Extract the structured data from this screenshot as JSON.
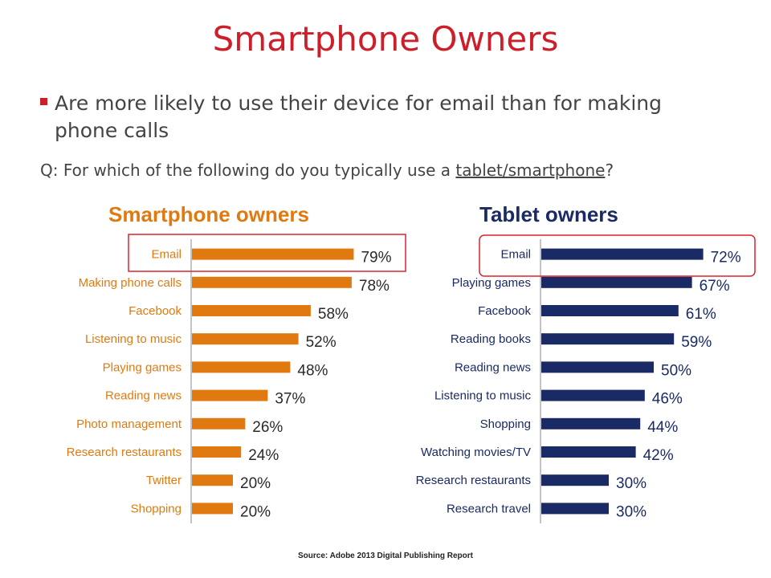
{
  "slide": {
    "title": "Smartphone Owners",
    "bullet": "Are more likely to use their device for email than for making phone calls",
    "question_prefix": "Q: For which of the following do you typically use a ",
    "question_underlined": "tablet/smartphone",
    "question_suffix": "?",
    "source": "Source: Adobe 2013 Digital Publishing Report"
  },
  "colors": {
    "title": "#cc1f2a",
    "smartphone_bar": "#e07a10",
    "tablet_bar": "#1a2a64",
    "highlight_box": "#d9232e"
  },
  "chart_data": [
    {
      "type": "bar",
      "orientation": "horizontal",
      "title": "Smartphone owners",
      "unit": "%",
      "categories": [
        "Email",
        "Making phone calls",
        "Facebook",
        "Listening to music",
        "Playing games",
        "Reading news",
        "Photo management",
        "Research restaurants",
        "Twitter",
        "Shopping"
      ],
      "values": [
        79,
        78,
        58,
        52,
        48,
        37,
        26,
        24,
        20,
        20
      ],
      "highlighted_category": "Email"
    },
    {
      "type": "bar",
      "orientation": "horizontal",
      "title": "Tablet owners",
      "unit": "%",
      "categories": [
        "Email",
        "Playing games",
        "Facebook",
        "Reading books",
        "Reading news",
        "Listening to music",
        "Shopping",
        "Watching movies/TV",
        "Research restaurants",
        "Research travel"
      ],
      "values": [
        72,
        67,
        61,
        59,
        50,
        46,
        44,
        42,
        30,
        30
      ],
      "highlighted_category": "Email"
    }
  ]
}
